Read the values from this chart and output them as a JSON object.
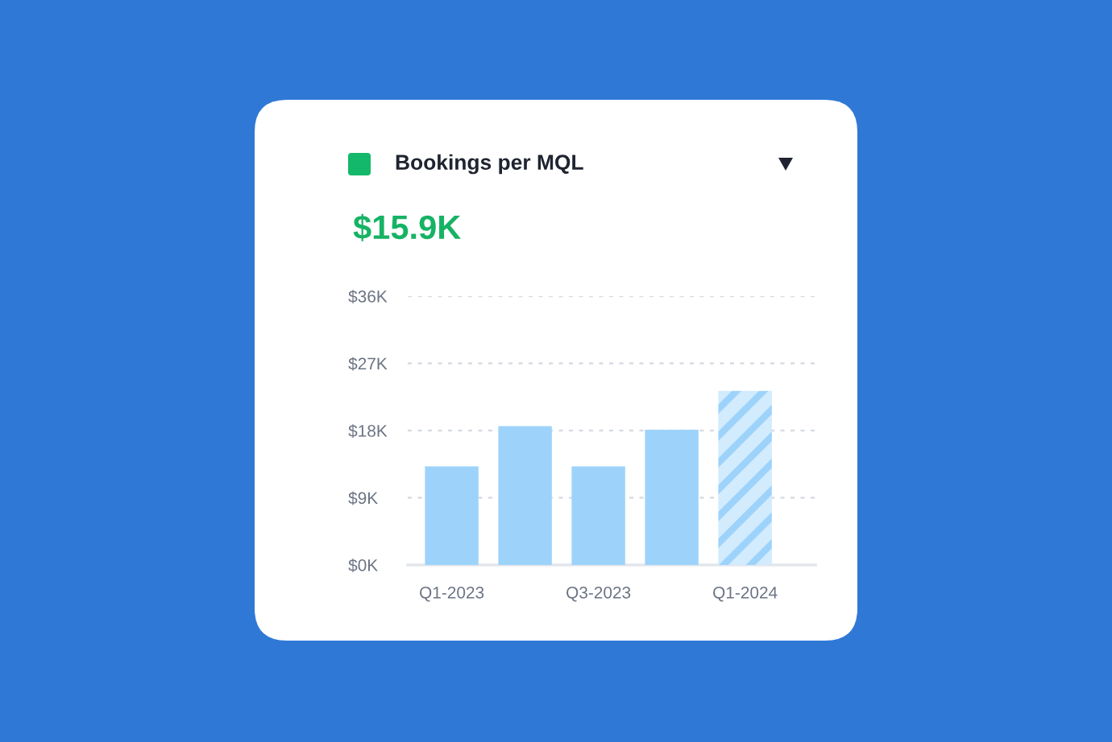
{
  "chart_data": {
    "type": "bar",
    "title": "Bookings per MQL",
    "subtitle": "$15.9K",
    "categories": [
      "Q1-2023",
      null,
      "Q3-2023",
      null,
      "Q1-2024"
    ],
    "values": [
      13.2,
      18.6,
      13.2,
      18.1,
      23.3
    ],
    "colors": [
      "#9dd3fb",
      "#9dd3fb",
      "#9dd3fb",
      "#9dd3fb",
      "#d2ebfd"
    ],
    "ylim": [
      0,
      36
    ],
    "yticks": [
      {
        "value": 0,
        "label": "$0K"
      },
      {
        "value": 9,
        "label": "$9K"
      },
      {
        "value": 18,
        "label": "$18K"
      },
      {
        "value": 27,
        "label": "$27K"
      },
      {
        "value": 36,
        "label": "$36K"
      }
    ],
    "grid": "y"
  }
}
